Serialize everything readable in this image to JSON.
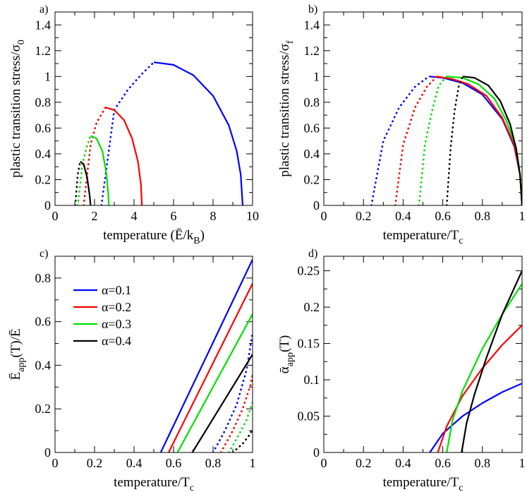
{
  "colors": {
    "a01": "#0000ff",
    "a02": "#ff0000",
    "a03": "#00e000",
    "a04": "#000000"
  },
  "legend": {
    "entries": [
      "α=0.1",
      "α=0.2",
      "α=0.3",
      "α=0.4"
    ]
  },
  "chart_data": [
    {
      "id": "a",
      "panel_label": "a)",
      "type": "line",
      "xlabel": "temperature (Ē/kB)",
      "xlabel_parts": {
        "pre": "temperature (Ē/k",
        "sub": "B",
        "post": ")"
      },
      "ylabel": "plastic transition stress/σ0",
      "ylabel_parts": {
        "pre": "plastic transition stress/σ",
        "sub": "0",
        "post": ""
      },
      "xlim": [
        0,
        10
      ],
      "ylim": [
        0,
        1.5
      ],
      "xticks": [
        0,
        2,
        4,
        6,
        8,
        10
      ],
      "xtick_labels": [
        "0",
        "2",
        "4",
        "6",
        "8",
        "10"
      ],
      "yticks": [
        0,
        0.2,
        0.4,
        0.6,
        0.8,
        1,
        1.2,
        1.4
      ],
      "ytick_labels": [
        "0",
        "0.2",
        "0.4",
        "0.6",
        "0.8",
        "1",
        "1.2",
        "1.4"
      ],
      "series": [
        {
          "name": "α=0.1",
          "color_key": "a01",
          "dotted": {
            "x": [
              2.35,
              3.0,
              3.7,
              4.4,
              5.0
            ],
            "y": [
              0.0,
              0.74,
              0.9,
              1.02,
              1.11
            ]
          },
          "solid": {
            "x": [
              5.0,
              6.0,
              7.0,
              8.0,
              8.8,
              9.2,
              9.4,
              9.5
            ],
            "y": [
              1.11,
              1.09,
              1.01,
              0.85,
              0.62,
              0.42,
              0.24,
              0.0
            ]
          }
        },
        {
          "name": "α=0.2",
          "color_key": "a02",
          "dotted": {
            "x": [
              1.45,
              1.8,
              2.1,
              2.55
            ],
            "y": [
              0.0,
              0.47,
              0.64,
              0.76
            ]
          },
          "solid": {
            "x": [
              2.55,
              3.0,
              3.5,
              3.9,
              4.2,
              4.35,
              4.4
            ],
            "y": [
              0.76,
              0.74,
              0.66,
              0.52,
              0.34,
              0.16,
              0.0
            ]
          }
        },
        {
          "name": "α=0.3",
          "color_key": "a03",
          "dotted": {
            "x": [
              1.15,
              1.4,
              1.6,
              1.8
            ],
            "y": [
              0.0,
              0.33,
              0.45,
              0.54
            ]
          },
          "solid": {
            "x": [
              1.8,
              2.1,
              2.4,
              2.6,
              2.7,
              2.72
            ],
            "y": [
              0.54,
              0.52,
              0.42,
              0.25,
              0.08,
              0.0
            ]
          }
        },
        {
          "name": "α=0.4",
          "color_key": "a04",
          "dotted": {
            "x": [
              1.02,
              1.15,
              1.27
            ],
            "y": [
              0.0,
              0.24,
              0.34
            ]
          },
          "solid": {
            "x": [
              1.27,
              1.45,
              1.62,
              1.75,
              1.8
            ],
            "y": [
              0.34,
              0.32,
              0.22,
              0.08,
              0.0
            ]
          }
        }
      ]
    },
    {
      "id": "b",
      "panel_label": "b)",
      "type": "line",
      "xlabel": "temperature/Tc",
      "xlabel_parts": {
        "pre": "temperature/T",
        "sub": "c",
        "post": ""
      },
      "ylabel": "plastic transition stress/σf",
      "ylabel_parts": {
        "pre": "plastic transition stress/σ",
        "sub": "f",
        "post": ""
      },
      "xlim": [
        0,
        1
      ],
      "ylim": [
        0,
        1.5
      ],
      "xticks": [
        0,
        0.2,
        0.4,
        0.6,
        0.8,
        1
      ],
      "xtick_labels": [
        "0",
        "0.2",
        "0.4",
        "0.6",
        "0.8",
        "1"
      ],
      "yticks": [
        0,
        0.2,
        0.4,
        0.6,
        0.8,
        1,
        1.2,
        1.4
      ],
      "ytick_labels": [
        "0",
        "0.2",
        "0.4",
        "0.6",
        "0.8",
        "1",
        "1.2",
        "1.4"
      ],
      "series": [
        {
          "name": "α=0.1",
          "color_key": "a01",
          "dotted": {
            "x": [
              0.24,
              0.3,
              0.38,
              0.46,
              0.53
            ],
            "y": [
              0.0,
              0.5,
              0.76,
              0.92,
              1.0
            ]
          },
          "solid": {
            "x": [
              0.53,
              0.6,
              0.7,
              0.8,
              0.9,
              0.96,
              0.99,
              1.0
            ],
            "y": [
              1.0,
              0.99,
              0.95,
              0.86,
              0.67,
              0.46,
              0.24,
              0.0
            ]
          }
        },
        {
          "name": "α=0.2",
          "color_key": "a02",
          "dotted": {
            "x": [
              0.36,
              0.4,
              0.46,
              0.52,
              0.57
            ],
            "y": [
              0.0,
              0.47,
              0.76,
              0.92,
              1.0
            ]
          },
          "solid": {
            "x": [
              0.57,
              0.65,
              0.73,
              0.82,
              0.9,
              0.96,
              0.99,
              1.0
            ],
            "y": [
              1.0,
              0.98,
              0.94,
              0.85,
              0.68,
              0.47,
              0.24,
              0.0
            ]
          }
        },
        {
          "name": "α=0.3",
          "color_key": "a03",
          "dotted": {
            "x": [
              0.48,
              0.51,
              0.55,
              0.58,
              0.62
            ],
            "y": [
              0.0,
              0.47,
              0.76,
              0.93,
              1.0
            ]
          },
          "solid": {
            "x": [
              0.62,
              0.7,
              0.78,
              0.86,
              0.92,
              0.97,
              0.99,
              1.0
            ],
            "y": [
              1.0,
              0.99,
              0.94,
              0.83,
              0.66,
              0.45,
              0.24,
              0.0
            ]
          }
        },
        {
          "name": "α=0.4",
          "color_key": "a04",
          "dotted": {
            "x": [
              0.62,
              0.64,
              0.66,
              0.68,
              0.7
            ],
            "y": [
              0.0,
              0.45,
              0.74,
              0.92,
              1.0
            ]
          },
          "solid": {
            "x": [
              0.7,
              0.76,
              0.83,
              0.89,
              0.94,
              0.97,
              0.99,
              1.0
            ],
            "y": [
              1.0,
              0.99,
              0.93,
              0.81,
              0.63,
              0.44,
              0.23,
              0.0
            ]
          }
        }
      ]
    },
    {
      "id": "c",
      "panel_label": "c)",
      "type": "line",
      "xlabel": "temperature/Tc",
      "xlabel_parts": {
        "pre": "temperature/T",
        "sub": "c",
        "post": ""
      },
      "ylabel": "Ēapp(T)/Ē",
      "ylabel_parts": {
        "pre": "Ē",
        "sub": "app",
        "post": "(T)/Ē"
      },
      "xlim": [
        0,
        1
      ],
      "ylim": [
        0,
        0.9
      ],
      "xticks": [
        0,
        0.2,
        0.4,
        0.6,
        0.8,
        1
      ],
      "xtick_labels": [
        "0",
        "0.2",
        "0.4",
        "0.6",
        "0.8",
        "1"
      ],
      "yticks": [
        0,
        0.2,
        0.4,
        0.6,
        0.8
      ],
      "ytick_labels": [
        "0",
        "0.2",
        "0.4",
        "0.6",
        "0.8"
      ],
      "legend": true,
      "series": [
        {
          "name": "α=0.1",
          "color_key": "a01",
          "solid": {
            "x": [
              0.535,
              1.0
            ],
            "y": [
              0.0,
              0.885
            ]
          },
          "dotted": {
            "x": [
              0.8,
              0.86,
              0.92,
              0.97,
              1.0
            ],
            "y": [
              0.0,
              0.1,
              0.22,
              0.38,
              0.55
            ]
          }
        },
        {
          "name": "α=0.2",
          "color_key": "a02",
          "solid": {
            "x": [
              0.575,
              1.0
            ],
            "y": [
              0.0,
              0.775
            ]
          },
          "dotted": {
            "x": [
              0.84,
              0.9,
              0.95,
              0.99,
              1.0
            ],
            "y": [
              0.0,
              0.1,
              0.2,
              0.31,
              0.36
            ]
          }
        },
        {
          "name": "α=0.3",
          "color_key": "a03",
          "solid": {
            "x": [
              0.62,
              1.0
            ],
            "y": [
              0.0,
              0.635
            ]
          },
          "dotted": {
            "x": [
              0.88,
              0.93,
              0.97,
              1.0
            ],
            "y": [
              0.0,
              0.08,
              0.15,
              0.23
            ]
          }
        },
        {
          "name": "α=0.4",
          "color_key": "a04",
          "solid": {
            "x": [
              0.695,
              1.0
            ],
            "y": [
              0.0,
              0.45
            ]
          },
          "dotted": {
            "x": [
              0.9,
              0.95,
              0.98,
              1.0
            ],
            "y": [
              0.0,
              0.04,
              0.075,
              0.105
            ]
          }
        }
      ]
    },
    {
      "id": "d",
      "panel_label": "d)",
      "type": "line",
      "xlabel": "temperature/Tc",
      "xlabel_parts": {
        "pre": "temperature/T",
        "sub": "c",
        "post": ""
      },
      "ylabel": "ᾱapp(T)",
      "ylabel_parts": {
        "pre": "ᾱ",
        "sub": "app",
        "post": "(T)"
      },
      "xlim": [
        0,
        1
      ],
      "ylim": [
        0,
        0.27
      ],
      "xticks": [
        0,
        0.2,
        0.4,
        0.6,
        0.8,
        1
      ],
      "xtick_labels": [
        "0",
        "0.2",
        "0.4",
        "0.6",
        "0.8",
        "1"
      ],
      "yticks": [
        0,
        0.05,
        0.1,
        0.15,
        0.2,
        0.25
      ],
      "ytick_labels": [
        "0",
        "0.05",
        "0.1",
        "0.15",
        "0.2",
        "0.25"
      ],
      "series": [
        {
          "name": "α=0.1",
          "color_key": "a01",
          "solid": {
            "x": [
              0.535,
              0.6,
              0.7,
              0.8,
              0.9,
              1.0
            ],
            "y": [
              0.0,
              0.026,
              0.05,
              0.068,
              0.083,
              0.095
            ]
          }
        },
        {
          "name": "α=0.2",
          "color_key": "a02",
          "solid": {
            "x": [
              0.575,
              0.62,
              0.7,
              0.8,
              0.9,
              1.0
            ],
            "y": [
              0.0,
              0.036,
              0.078,
              0.116,
              0.148,
              0.175
            ]
          }
        },
        {
          "name": "α=0.3",
          "color_key": "a03",
          "solid": {
            "x": [
              0.62,
              0.65,
              0.7,
              0.8,
              0.9,
              1.0
            ],
            "y": [
              0.0,
              0.045,
              0.085,
              0.143,
              0.19,
              0.232
            ]
          }
        },
        {
          "name": "α=0.4",
          "color_key": "a04",
          "solid": {
            "x": [
              0.695,
              0.72,
              0.76,
              0.82,
              0.9,
              1.0
            ],
            "y": [
              0.0,
              0.04,
              0.08,
              0.13,
              0.19,
              0.25
            ]
          }
        }
      ]
    }
  ]
}
